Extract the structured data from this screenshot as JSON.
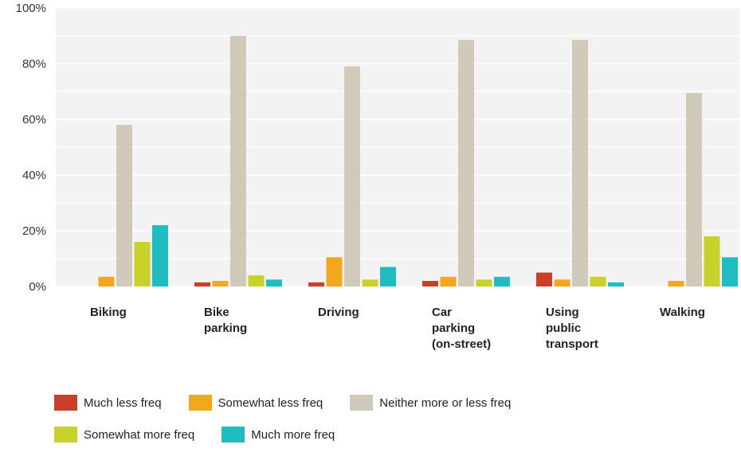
{
  "chart_data": {
    "type": "bar",
    "title": "",
    "xlabel": "",
    "ylabel": "",
    "ylim": [
      0,
      100
    ],
    "yticks": [
      0,
      20,
      40,
      60,
      80,
      100
    ],
    "ytick_labels": [
      "0%",
      "20%",
      "40%",
      "60%",
      "80%",
      "100%"
    ],
    "grid": true,
    "legend_position": "bottom",
    "categories": [
      [
        "Biking"
      ],
      [
        "Bike",
        "parking"
      ],
      [
        "Driving"
      ],
      [
        "Car",
        "parking",
        "(on-street)"
      ],
      [
        "Using",
        "public",
        "transport"
      ],
      [
        "Walking"
      ]
    ],
    "series": [
      {
        "name": "Much less freq",
        "color": "#c8402a",
        "values": [
          0,
          1.5,
          1.5,
          2,
          5,
          0
        ]
      },
      {
        "name": "Somewhat less freq",
        "color": "#f2a71c",
        "values": [
          3.5,
          2,
          10.5,
          3.5,
          2.5,
          2
        ]
      },
      {
        "name": "Neither more or less freq",
        "color": "#cfcab9",
        "values": [
          58,
          90,
          79,
          88.5,
          88.5,
          69.5
        ]
      },
      {
        "name": "Somewhat more freq",
        "color": "#c9d22a",
        "values": [
          16,
          4,
          2.5,
          2.5,
          3.5,
          18
        ]
      },
      {
        "name": "Much more freq",
        "color": "#1fbdc0",
        "values": [
          22,
          2.5,
          7,
          3.5,
          1.5,
          10.5
        ]
      }
    ]
  },
  "legend": {
    "rows": [
      [
        0,
        1,
        2
      ],
      [
        3,
        4
      ]
    ]
  }
}
